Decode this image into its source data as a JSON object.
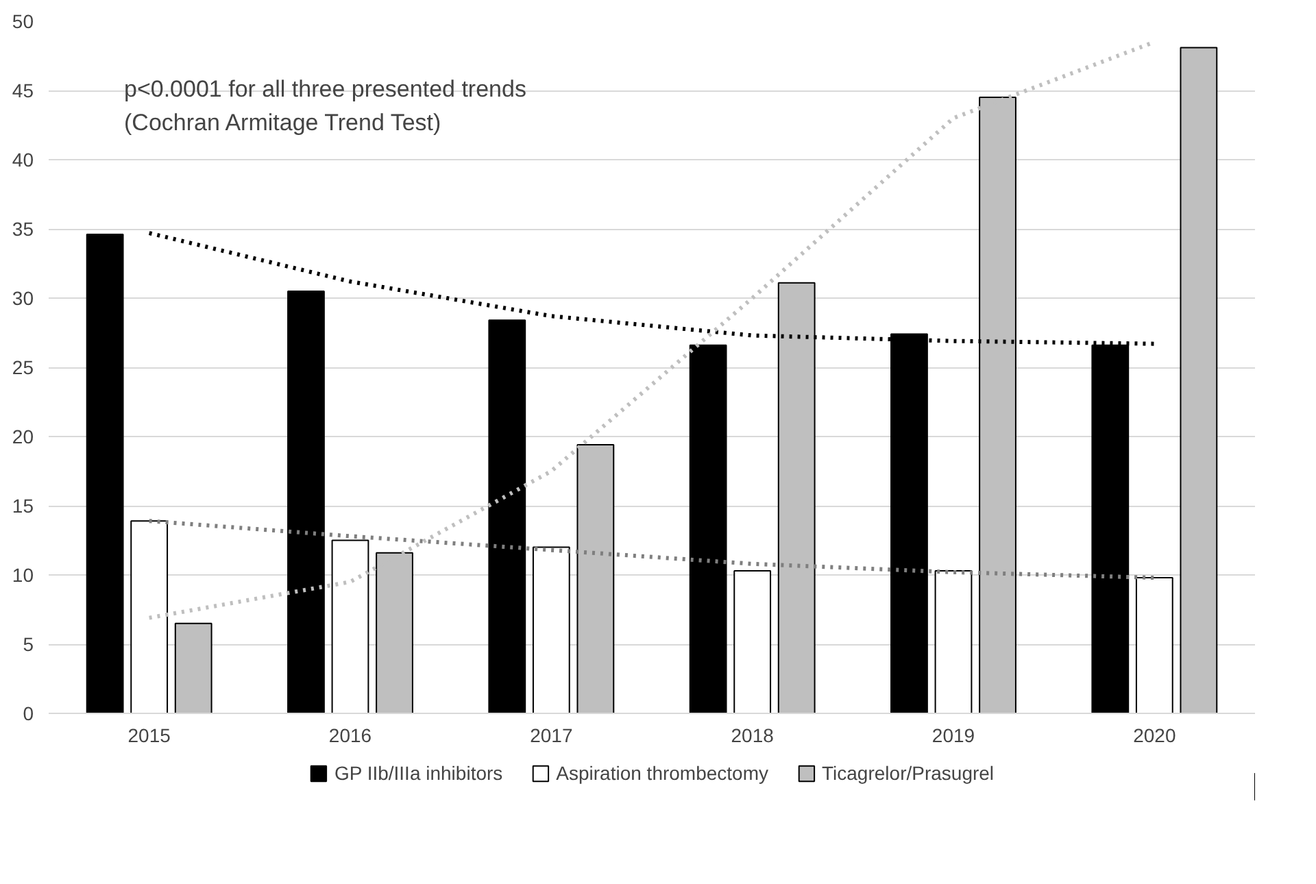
{
  "chart_data": {
    "type": "bar",
    "categories": [
      "2015",
      "2016",
      "2017",
      "2018",
      "2019",
      "2020"
    ],
    "series": [
      {
        "name": "GP IIb/IIIa inhibitors",
        "color": "#000000",
        "values": [
          34.6,
          30.5,
          28.4,
          26.6,
          27.4,
          26.6
        ]
      },
      {
        "name": "Aspiration thrombectomy",
        "color": "#ffffff",
        "values": [
          13.9,
          12.5,
          12.0,
          10.3,
          10.3,
          9.8
        ]
      },
      {
        "name": "Ticagrelor/Prasugrel",
        "color": "#bfbfbf",
        "values": [
          6.5,
          11.6,
          19.4,
          31.1,
          44.5,
          48.1
        ]
      },
      {
        "type": "line",
        "line_style": "dotted",
        "color": "#000000",
        "values": [
          34.7,
          31.2,
          28.7,
          27.3,
          26.9,
          26.7
        ]
      },
      {
        "type": "line",
        "line_style": "dotted",
        "color": "#7f7f7f",
        "values": [
          13.9,
          12.8,
          11.8,
          10.8,
          10.2,
          9.8
        ]
      },
      {
        "type": "line",
        "line_style": "dotted",
        "color": "#bfbfbf",
        "values": [
          6.9,
          9.5,
          17.5,
          30.0,
          43.0,
          48.5
        ]
      }
    ],
    "ylim": [
      0,
      50
    ],
    "yticks": [
      0,
      5,
      10,
      15,
      20,
      25,
      30,
      35,
      40,
      45,
      50
    ],
    "grid": "y",
    "legend": "bottom",
    "annotations": [
      "p<0.0001 for all three presented trends\n(Cochran Armitage Trend Test)"
    ]
  }
}
